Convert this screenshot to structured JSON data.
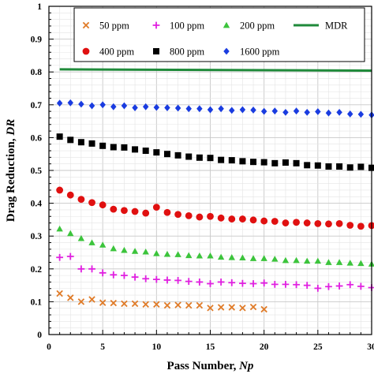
{
  "chart_data": {
    "type": "scatter",
    "xlabel": "Pass Number, ",
    "xlabel_italic": "Np",
    "ylabel": "Drag Reduction, ",
    "ylabel_italic": "DR",
    "xlim": [
      0,
      30
    ],
    "ylim": [
      0,
      1
    ],
    "xticks": [
      0,
      5,
      10,
      15,
      20,
      25,
      30
    ],
    "yticks": [
      0,
      0.1,
      0.2,
      0.3,
      0.4,
      0.5,
      0.6,
      0.7,
      0.8,
      0.9,
      1
    ],
    "xtick_labels": [
      "0",
      "5",
      "10",
      "15",
      "20",
      "25",
      "30"
    ],
    "ytick_labels": [
      "0",
      "0.1",
      "0.2",
      "0.3",
      "0.4",
      "0.5",
      "0.6",
      "0.7",
      "0.8",
      "0.9",
      "1"
    ],
    "grid": true,
    "legend_position": "top",
    "series": [
      {
        "name": "50 ppm",
        "marker": "x",
        "color": "#e07b28",
        "x": [
          1,
          2,
          3,
          4,
          5,
          6,
          7,
          8,
          9,
          10,
          11,
          12,
          13,
          14,
          15,
          16,
          17,
          18,
          19,
          20
        ],
        "y": [
          0.125,
          0.112,
          0.1,
          0.107,
          0.097,
          0.096,
          0.094,
          0.094,
          0.092,
          0.092,
          0.089,
          0.09,
          0.089,
          0.089,
          0.081,
          0.083,
          0.083,
          0.081,
          0.084,
          0.077
        ]
      },
      {
        "name": "100 ppm",
        "marker": "plus",
        "color": "#e020e0",
        "x": [
          1,
          2,
          3,
          4,
          5,
          6,
          7,
          8,
          9,
          10,
          11,
          12,
          13,
          14,
          15,
          16,
          17,
          18,
          19,
          20,
          21,
          22,
          23,
          24,
          25,
          26,
          27,
          28,
          29,
          30
        ],
        "y": [
          0.235,
          0.238,
          0.2,
          0.2,
          0.188,
          0.182,
          0.18,
          0.175,
          0.17,
          0.168,
          0.166,
          0.165,
          0.162,
          0.16,
          0.155,
          0.16,
          0.158,
          0.156,
          0.155,
          0.157,
          0.153,
          0.153,
          0.152,
          0.15,
          0.141,
          0.146,
          0.148,
          0.152,
          0.147,
          0.143
        ]
      },
      {
        "name": "200 ppm",
        "marker": "triangle",
        "color": "#3cc43c",
        "x": [
          1,
          2,
          3,
          4,
          5,
          6,
          7,
          8,
          9,
          10,
          11,
          12,
          13,
          14,
          15,
          16,
          17,
          18,
          19,
          20,
          21,
          22,
          23,
          24,
          25,
          26,
          27,
          28,
          29,
          30
        ],
        "y": [
          0.322,
          0.308,
          0.293,
          0.28,
          0.273,
          0.262,
          0.257,
          0.254,
          0.252,
          0.247,
          0.245,
          0.244,
          0.241,
          0.24,
          0.24,
          0.236,
          0.235,
          0.234,
          0.232,
          0.232,
          0.23,
          0.226,
          0.226,
          0.224,
          0.224,
          0.22,
          0.22,
          0.218,
          0.217,
          0.215
        ]
      },
      {
        "name": "400 ppm",
        "marker": "circle",
        "color": "#e01010",
        "x": [
          1,
          2,
          3,
          4,
          5,
          6,
          7,
          8,
          9,
          10,
          11,
          12,
          13,
          14,
          15,
          16,
          17,
          18,
          19,
          20,
          21,
          22,
          23,
          24,
          25,
          26,
          27,
          28,
          29,
          30
        ],
        "y": [
          0.44,
          0.425,
          0.412,
          0.402,
          0.395,
          0.382,
          0.378,
          0.375,
          0.37,
          0.388,
          0.372,
          0.366,
          0.362,
          0.358,
          0.36,
          0.355,
          0.352,
          0.352,
          0.349,
          0.346,
          0.345,
          0.34,
          0.342,
          0.34,
          0.338,
          0.337,
          0.338,
          0.333,
          0.33,
          0.332
        ]
      },
      {
        "name": "800 ppm",
        "marker": "square",
        "color": "#000000",
        "x": [
          1,
          2,
          3,
          4,
          5,
          6,
          7,
          8,
          9,
          10,
          11,
          12,
          13,
          14,
          15,
          16,
          17,
          18,
          19,
          20,
          21,
          22,
          23,
          24,
          25,
          26,
          27,
          28,
          29,
          30
        ],
        "y": [
          0.603,
          0.593,
          0.586,
          0.582,
          0.575,
          0.571,
          0.57,
          0.564,
          0.56,
          0.555,
          0.55,
          0.546,
          0.542,
          0.539,
          0.538,
          0.532,
          0.531,
          0.528,
          0.526,
          0.525,
          0.522,
          0.524,
          0.522,
          0.516,
          0.515,
          0.512,
          0.512,
          0.509,
          0.511,
          0.508
        ]
      },
      {
        "name": "1600 ppm",
        "marker": "diamond",
        "color": "#1a3ce0",
        "x": [
          1,
          2,
          3,
          4,
          5,
          6,
          7,
          8,
          9,
          10,
          11,
          12,
          13,
          14,
          15,
          16,
          17,
          18,
          19,
          20,
          21,
          22,
          23,
          24,
          25,
          26,
          27,
          28,
          29,
          30
        ],
        "y": [
          0.705,
          0.706,
          0.702,
          0.697,
          0.7,
          0.694,
          0.697,
          0.691,
          0.694,
          0.692,
          0.691,
          0.69,
          0.688,
          0.688,
          0.685,
          0.688,
          0.683,
          0.685,
          0.684,
          0.68,
          0.681,
          0.677,
          0.681,
          0.677,
          0.679,
          0.675,
          0.677,
          0.672,
          0.671,
          0.669
        ]
      },
      {
        "name": "MDR",
        "marker": "line",
        "color": "#1f8a3a",
        "x": [
          1,
          30
        ],
        "y": [
          0.808,
          0.804
        ]
      }
    ]
  }
}
